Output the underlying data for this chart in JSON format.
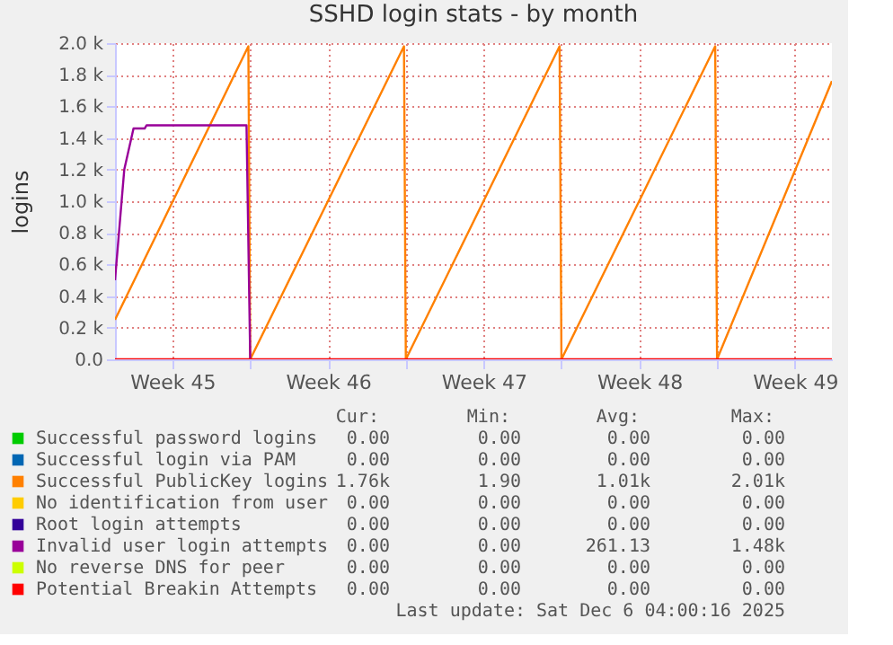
{
  "chart_data": {
    "type": "line",
    "title": "SSHD login stats - by month",
    "ylabel": "logins",
    "xlim": [
      "2025-11-03T22:00",
      "2025-12-06T04:00"
    ],
    "ylim": [
      0,
      2000
    ],
    "xticks": [
      {
        "value": "2025-11-10",
        "label": null
      },
      {
        "value": "2025-11-17",
        "label": null
      },
      {
        "value": "2025-11-24",
        "label": null
      },
      {
        "value": "2025-12-01",
        "label": null
      },
      {
        "value": "2025-11-06T12:00",
        "label": "Week 45"
      },
      {
        "value": "2025-11-13T12:00",
        "label": "Week 46"
      },
      {
        "value": "2025-11-20T12:00",
        "label": "Week 47"
      },
      {
        "value": "2025-11-27T12:00",
        "label": "Week 48"
      },
      {
        "value": "2025-12-04T12:00",
        "label": "Week 49"
      }
    ],
    "yticks": [
      {
        "value": 0,
        "label": "0.0"
      },
      {
        "value": 200,
        "label": "0.2 k"
      },
      {
        "value": 400,
        "label": "0.4 k"
      },
      {
        "value": 600,
        "label": "0.6 k"
      },
      {
        "value": 800,
        "label": "0.8 k"
      },
      {
        "value": 1000,
        "label": "1.0 k"
      },
      {
        "value": 1200,
        "label": "1.2 k"
      },
      {
        "value": 1400,
        "label": "1.4 k"
      },
      {
        "value": 1600,
        "label": "1.6 k"
      },
      {
        "value": 1800,
        "label": "1.8 k"
      },
      {
        "value": 2000,
        "label": "2.0 k"
      }
    ],
    "grid": true,
    "legend": "bottom",
    "marker": "none",
    "line_style": "solid",
    "series": [
      {
        "name": "Successful password logins",
        "color": "#00cc00"
      },
      {
        "name": "Successful login via PAM",
        "color": "#0066b3"
      },
      {
        "name": "Successful PublicKey logins",
        "color": "#ff8000",
        "x": [
          "2025-11-03T22:00",
          "2025-11-09T22:00",
          "2025-11-10",
          "2025-11-16T22:00",
          "2025-11-17",
          "2025-11-23T22:00",
          "2025-11-24",
          "2025-11-30T22:00",
          "2025-12-01",
          "2025-12-06T04:00"
        ],
        "values": [
          250,
          1980,
          0,
          1980,
          0,
          1980,
          0,
          1980,
          0,
          1760
        ]
      },
      {
        "name": "No identification from user",
        "color": "#ffcc00"
      },
      {
        "name": "Root login attempts",
        "color": "#330099"
      },
      {
        "name": "Invalid user login attempts",
        "color": "#990099",
        "x": [
          "2025-11-03T22:00",
          "2025-11-04T08:00",
          "2025-11-04T18:00",
          "2025-11-05T06:00",
          "2025-11-05T08:00",
          "2025-11-09T20:00",
          "2025-11-10"
        ],
        "values": [
          500,
          1200,
          1460,
          1460,
          1480,
          1480,
          0
        ]
      },
      {
        "name": "No reverse DNS for peer",
        "color": "#ccff00"
      },
      {
        "name": "Potential Breakin Attempts",
        "color": "#ff0000",
        "x": [
          "2025-11-03T22:00",
          "2025-12-06T04:00"
        ],
        "values": [
          0,
          0
        ]
      }
    ],
    "annotations": [
      "Cur:",
      "Min:",
      "Avg:",
      "Max:",
      "0.00",
      "0.00",
      "0.00",
      "0.00",
      "0.00",
      "0.00",
      "0.00",
      "0.00",
      "1.76k",
      "1.90",
      "1.01k",
      "2.01k",
      "0.00",
      "0.00",
      "0.00",
      "0.00",
      "0.00",
      "0.00",
      "0.00",
      "0.00",
      "0.00",
      "0.00",
      "261.13",
      "1.48k",
      "0.00",
      "0.00",
      "0.00",
      "0.00",
      "0.00",
      "0.00",
      "0.00",
      "0.00",
      "Last update: Sat Dec  6 04:00:16 2025"
    ]
  }
}
